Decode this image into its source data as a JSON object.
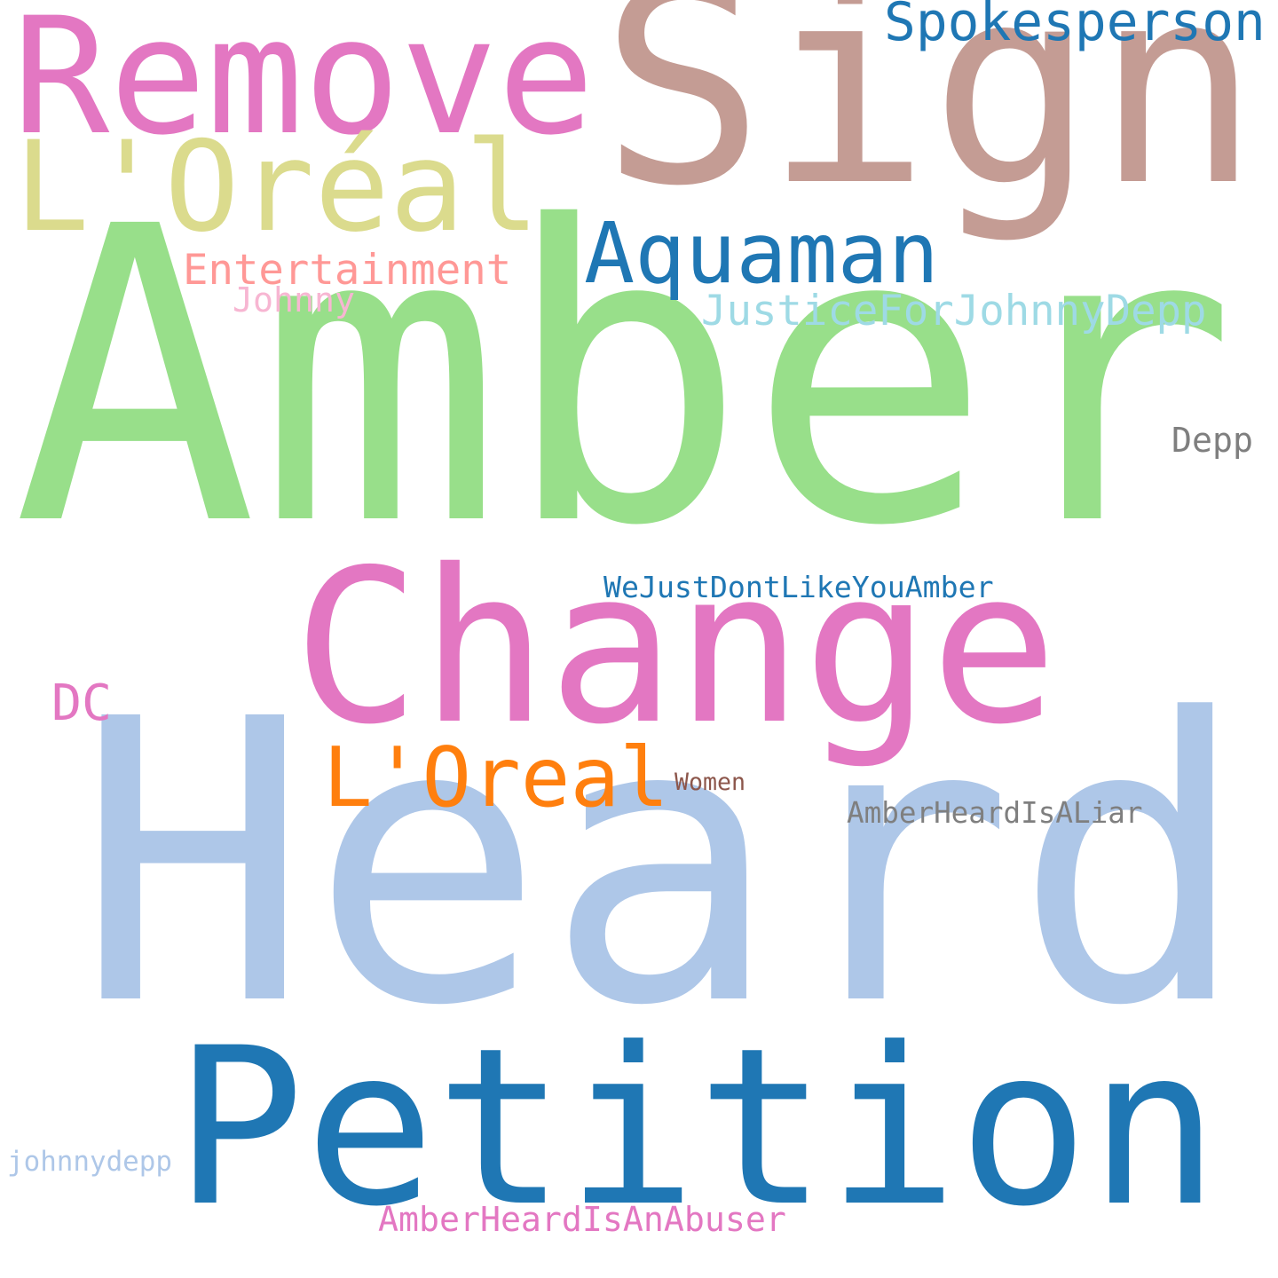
{
  "word_cloud": {
    "words": [
      {
        "text": "Amber",
        "color": "#98df8a"
      },
      {
        "text": "Heard",
        "color": "#aec7e8"
      },
      {
        "text": "Sign",
        "color": "#c49c94"
      },
      {
        "text": "Petition",
        "color": "#1f77b4"
      },
      {
        "text": "Change",
        "color": "#e377c2"
      },
      {
        "text": "Remove",
        "color": "#e377c2"
      },
      {
        "text": "L'Oréal",
        "color": "#dbdb8d"
      },
      {
        "text": "Aquaman",
        "color": "#1f77b4"
      },
      {
        "text": "L'Oreal",
        "color": "#ff7f0e"
      },
      {
        "text": "Spokesperson",
        "color": "#1f77b4"
      },
      {
        "text": "JusticeForJohnnyDepp",
        "color": "#9edae5"
      },
      {
        "text": "Entertainment",
        "color": "#ff9896"
      },
      {
        "text": "DC",
        "color": "#e377c2"
      },
      {
        "text": "WeJustDontLikeYouAmber",
        "color": "#1f77b4"
      },
      {
        "text": "AmberHeardIsALiar",
        "color": "#7f7f7f"
      },
      {
        "text": "AmberHeardIsAnAbuser",
        "color": "#e377c2"
      },
      {
        "text": "Depp",
        "color": "#7f7f7f"
      },
      {
        "text": "johnnydepp",
        "color": "#aec7e8"
      },
      {
        "text": "Johnny",
        "color": "#f7b6d2"
      },
      {
        "text": "Women",
        "color": "#8c564b"
      }
    ]
  }
}
